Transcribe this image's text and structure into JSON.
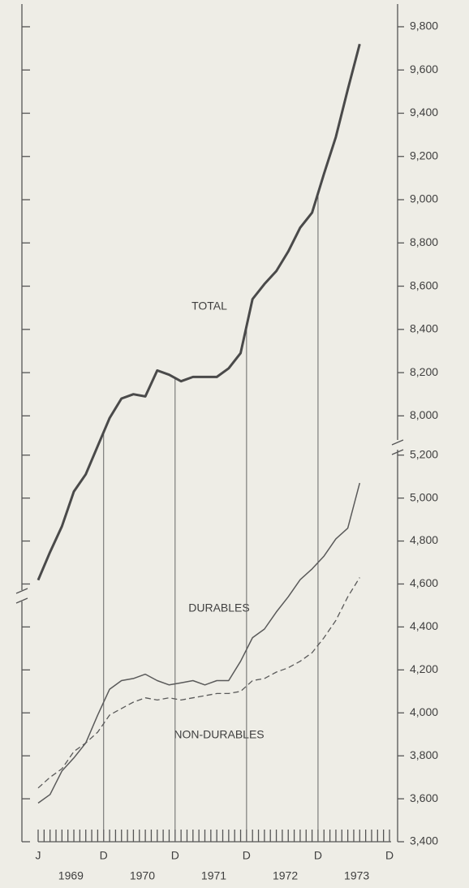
{
  "chart_data": {
    "type": "line",
    "x": [
      0,
      2,
      4,
      6,
      8,
      10,
      12,
      14,
      16,
      18,
      20,
      22,
      24,
      26,
      28,
      30,
      32,
      34,
      36,
      38,
      40,
      42,
      44,
      46,
      48,
      50,
      52,
      54
    ],
    "xlim": [
      0,
      59
    ],
    "xticks": [
      {
        "value": 0,
        "label": "J"
      },
      {
        "value": 11,
        "label": "D"
      },
      {
        "value": 23,
        "label": "D"
      },
      {
        "value": 35,
        "label": "D"
      },
      {
        "value": 47,
        "label": "D"
      },
      {
        "value": 59,
        "label": "D"
      }
    ],
    "year_labels": [
      {
        "value": 5.5,
        "label": "1969"
      },
      {
        "value": 17.5,
        "label": "1970"
      },
      {
        "value": 29.5,
        "label": "1971"
      },
      {
        "value": 41.5,
        "label": "1972"
      },
      {
        "value": 53.5,
        "label": "1973"
      }
    ],
    "ylim": [
      6030,
      9905
    ],
    "yticks": [
      {
        "value": 8000,
        "label": "8,000"
      },
      {
        "value": 8200,
        "label": "8,200"
      },
      {
        "value": 8400,
        "label": "8,400"
      },
      {
        "value": 8600,
        "label": "8,600"
      },
      {
        "value": 8800,
        "label": "8,800"
      },
      {
        "value": 9000,
        "label": "9,000"
      },
      {
        "value": 9200,
        "label": "9,200"
      },
      {
        "value": 9400,
        "label": "9,400"
      },
      {
        "value": 9600,
        "label": "9,600"
      },
      {
        "value": 9800,
        "label": "9,800"
      }
    ],
    "y2lim": [
      3400,
      7300
    ],
    "y2ticks": [
      {
        "value": 3400,
        "label": "3,400"
      },
      {
        "value": 3600,
        "label": "3,600"
      },
      {
        "value": 3800,
        "label": "3,800"
      },
      {
        "value": 4000,
        "label": "4,000"
      },
      {
        "value": 4200,
        "label": "4,200"
      },
      {
        "value": 4400,
        "label": "4,400"
      },
      {
        "value": 4600,
        "label": "4,600"
      },
      {
        "value": 4800,
        "label": "4,800"
      },
      {
        "value": 5000,
        "label": "5,000"
      },
      {
        "value": 5200,
        "label": "5,200"
      }
    ],
    "series": [
      {
        "name": "TOTAL",
        "color": "#4a4a4a",
        "width": 3,
        "dash": false,
        "values": [
          7240,
          7370,
          7490,
          7650,
          7730,
          7860,
          7990,
          8080,
          8100,
          8090,
          8210,
          8190,
          8160,
          8180,
          8180,
          8180,
          8220,
          8290,
          8540,
          8610,
          8670,
          8760,
          8870,
          8940,
          9120,
          9290,
          9510,
          9720
        ]
      },
      {
        "name": "DURABLES",
        "color": "#5a5a5a",
        "width": 1.5,
        "dash": false,
        "axis": "y2",
        "values": [
          3580,
          3620,
          3730,
          3790,
          3860,
          3990,
          4110,
          4150,
          4160,
          4180,
          4150,
          4130,
          4140,
          4150,
          4130,
          4150,
          4150,
          4240,
          4350,
          4390,
          4470,
          4540,
          4620,
          4670,
          4730,
          4810,
          4860,
          5070
        ]
      },
      {
        "name": "NON-DURABLES",
        "color": "#5a5a5a",
        "width": 1.3,
        "dash": true,
        "axis": "y2",
        "values": [
          3650,
          3700,
          3740,
          3820,
          3860,
          3910,
          3990,
          4020,
          4050,
          4070,
          4060,
          4070,
          4060,
          4070,
          4080,
          4090,
          4090,
          4100,
          4150,
          4160,
          4190,
          4210,
          4240,
          4280,
          4350,
          4430,
          4540,
          4630
        ]
      }
    ]
  }
}
